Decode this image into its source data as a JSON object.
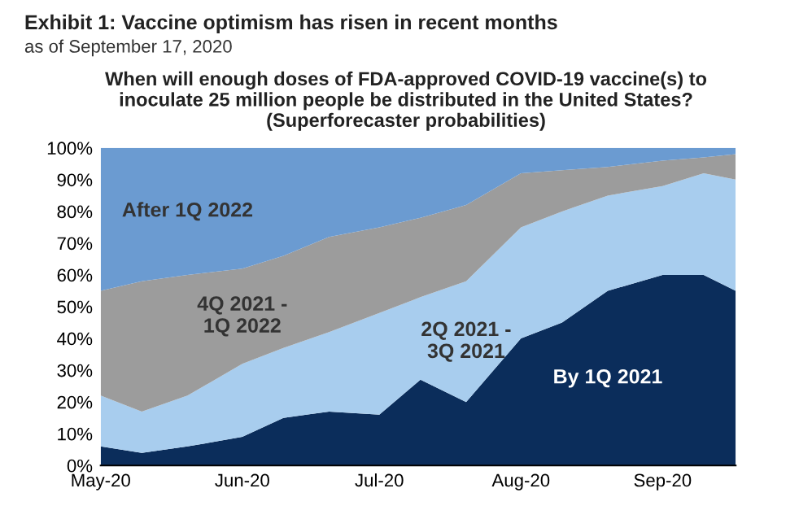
{
  "chart_data": {
    "type": "area",
    "stacked": true,
    "title": "Exhibit 1: Vaccine optimism has risen in recent months",
    "subtitle": "as of September 17, 2020",
    "annotations": [
      "When will enough doses of FDA-approved COVID-19 vaccine(s) to\ninoculate 25 million people be distributed in the United States?\n(Superforecaster probabilities)"
    ],
    "x": [
      "2020-05-01",
      "2020-05-10",
      "2020-05-20",
      "2020-06-01",
      "2020-06-10",
      "2020-06-20",
      "2020-07-01",
      "2020-07-10",
      "2020-07-20",
      "2020-08-01",
      "2020-08-10",
      "2020-08-20",
      "2020-09-01",
      "2020-09-10",
      "2020-09-17"
    ],
    "series": [
      {
        "name": "By 1Q 2021",
        "color": "#0b2d5b",
        "values": [
          6,
          4,
          6,
          9,
          15,
          17,
          16,
          27,
          20,
          40,
          45,
          55,
          60,
          60,
          55
        ]
      },
      {
        "name": "2Q 2021 -\n3Q 2021",
        "color": "#a8cdee",
        "values": [
          16,
          13,
          16,
          23,
          22,
          25,
          32,
          26,
          38,
          35,
          35,
          30,
          28,
          32,
          35
        ]
      },
      {
        "name": "4Q 2021 -\n1Q 2022",
        "color": "#9c9c9c",
        "values": [
          33,
          41,
          38,
          30,
          29,
          30,
          27,
          25,
          24,
          17,
          13,
          9,
          8,
          5,
          8
        ]
      },
      {
        "name": "After 1Q 2022",
        "color": "#6b9bd1",
        "values": [
          45,
          42,
          40,
          38,
          34,
          28,
          25,
          22,
          18,
          8,
          7,
          6,
          4,
          3,
          2
        ]
      }
    ],
    "xlim": [
      "2020-05-01",
      "2020-09-17"
    ],
    "xticks": [
      {
        "value": "2020-05-01",
        "label": "May-20"
      },
      {
        "value": "2020-06-01",
        "label": "Jun-20"
      },
      {
        "value": "2020-07-01",
        "label": "Jul-20"
      },
      {
        "value": "2020-08-01",
        "label": "Aug-20"
      },
      {
        "value": "2020-09-01",
        "label": "Sep-20"
      }
    ],
    "ylim": [
      0,
      100
    ],
    "yticks": [
      {
        "value": 0,
        "label": "0%"
      },
      {
        "value": 10,
        "label": "10%"
      },
      {
        "value": 20,
        "label": "20%"
      },
      {
        "value": 30,
        "label": "30%"
      },
      {
        "value": 40,
        "label": "40%"
      },
      {
        "value": 50,
        "label": "50%"
      },
      {
        "value": 60,
        "label": "60%"
      },
      {
        "value": 70,
        "label": "70%"
      },
      {
        "value": 80,
        "label": "80%"
      },
      {
        "value": 90,
        "label": "90%"
      },
      {
        "value": 100,
        "label": "100%"
      }
    ],
    "grid": false,
    "legend": false
  }
}
